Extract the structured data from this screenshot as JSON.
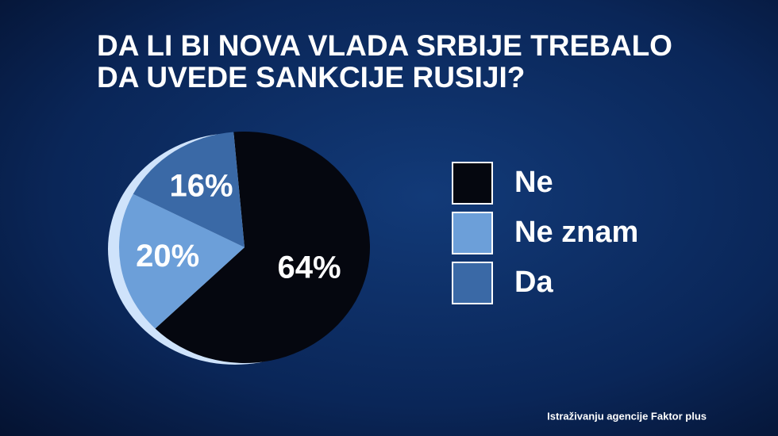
{
  "chart_data": {
    "type": "pie",
    "title": [
      "DA LI BI NOVA VLADA SRBIJE TREBALO",
      "DA UVEDE SANKCIJE RUSIJI?"
    ],
    "categories": [
      "Ne",
      "Ne znam",
      "Da"
    ],
    "values": [
      64,
      20,
      16
    ],
    "value_labels": [
      "64%",
      "20%",
      "16%"
    ],
    "colors": [
      "#05070f",
      "#6c9fd9",
      "#3a69a6"
    ],
    "source": "Istraživanju agencije Faktor plus"
  }
}
